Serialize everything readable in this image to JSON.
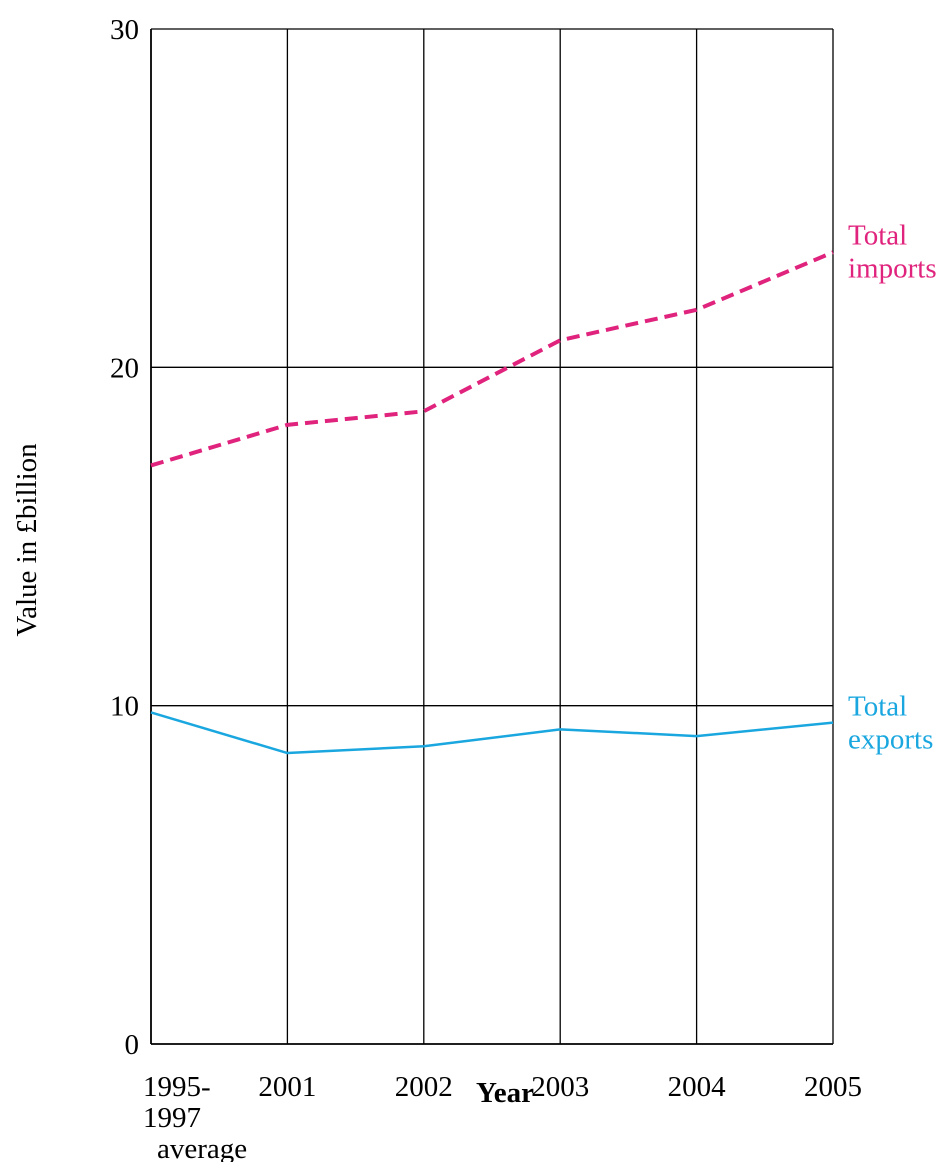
{
  "chart_data": {
    "type": "line",
    "title": "",
    "xlabel": "Year",
    "ylabel": "Value in £billion",
    "categories": [
      [
        "1995-",
        "1997",
        "average"
      ],
      [
        "2001"
      ],
      [
        "2002"
      ],
      [
        "2003"
      ],
      [
        "2004"
      ],
      [
        "2005"
      ]
    ],
    "ylim": [
      0,
      30
    ],
    "yticks": [
      "0",
      "10",
      "20",
      "30"
    ],
    "grid": true,
    "series": [
      {
        "name": [
          "Total",
          "imports"
        ],
        "values": [
          17.1,
          18.3,
          18.7,
          20.8,
          21.7,
          23.4
        ],
        "color": "#e0237d",
        "dashed": true
      },
      {
        "name": [
          "Total",
          "exports"
        ],
        "values": [
          9.8,
          8.6,
          8.8,
          9.3,
          9.1,
          9.5
        ],
        "color": "#1aa7df",
        "dashed": false
      }
    ],
    "legend": "right, at line ends"
  }
}
